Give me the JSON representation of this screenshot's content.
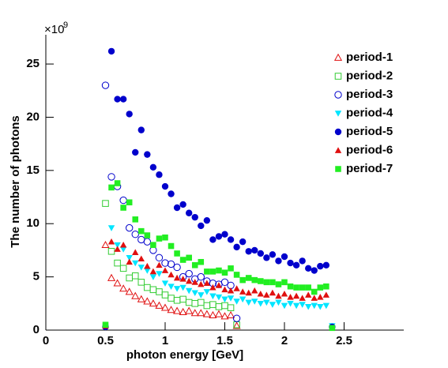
{
  "chart_data": {
    "type": "scatter",
    "x_label": "photon energy [GeV]",
    "y_label": "The number of photons",
    "multiplier": "×10",
    "multiplier_exponent": "9",
    "xlim": [
      0,
      3
    ],
    "ylim": [
      0,
      27.75
    ],
    "xticks": [
      0,
      0.5,
      1,
      1.5,
      2,
      2.5
    ],
    "yticks": [
      0,
      5,
      10,
      15,
      20,
      25
    ],
    "legend": "top-right",
    "x": [
      0.5,
      0.55,
      0.6,
      0.65,
      0.7,
      0.75,
      0.8,
      0.85,
      0.9,
      0.95,
      1.0,
      1.05,
      1.1,
      1.15,
      1.2,
      1.25,
      1.3,
      1.35,
      1.4,
      1.45,
      1.5,
      1.55,
      1.6,
      1.65,
      1.7,
      1.75,
      1.8,
      1.85,
      1.9,
      1.95,
      2.0,
      2.05,
      2.1,
      2.15,
      2.2,
      2.25,
      2.3,
      2.35,
      2.4
    ],
    "series": [
      {
        "name": "period-1",
        "color": "#e01010",
        "marker": "triangle-up-open",
        "values": [
          8.0,
          4.9,
          4.4,
          3.9,
          3.6,
          3.2,
          2.9,
          2.7,
          2.5,
          2.3,
          2.1,
          1.9,
          1.8,
          1.7,
          1.8,
          1.6,
          1.6,
          1.5,
          1.4,
          1.5,
          1.3,
          1.4,
          0.4,
          null,
          null,
          null,
          null,
          null,
          null,
          null,
          null,
          null,
          null,
          null,
          null,
          null,
          null,
          null,
          null
        ]
      },
      {
        "name": "period-2",
        "color": "#33cc33",
        "marker": "square-open",
        "values": [
          11.9,
          7.4,
          6.3,
          5.8,
          4.9,
          5.1,
          4.5,
          4.0,
          3.8,
          3.6,
          3.3,
          3.0,
          2.8,
          2.9,
          2.6,
          2.5,
          2.6,
          2.3,
          2.4,
          2.2,
          2.3,
          2.1,
          0.5,
          null,
          null,
          null,
          null,
          null,
          null,
          null,
          null,
          null,
          null,
          null,
          null,
          null,
          null,
          null,
          null
        ]
      },
      {
        "name": "period-3",
        "color": "#0000cc",
        "marker": "circle-open",
        "values": [
          23.0,
          14.4,
          13.5,
          12.2,
          9.6,
          9.0,
          8.5,
          8.3,
          7.5,
          6.8,
          6.3,
          6.2,
          5.9,
          5.0,
          5.3,
          4.8,
          5.0,
          4.6,
          4.4,
          4.3,
          4.5,
          4.2,
          1.1,
          null,
          null,
          null,
          null,
          null,
          null,
          null,
          null,
          null,
          null,
          null,
          null,
          null,
          null,
          null,
          null
        ]
      },
      {
        "name": "period-4",
        "color": "#00e5ff",
        "marker": "triangle-down",
        "values": [
          0.3,
          9.6,
          8.0,
          7.6,
          6.8,
          6.3,
          5.9,
          5.6,
          5.0,
          5.3,
          4.4,
          4.1,
          3.9,
          4.0,
          3.7,
          3.5,
          3.3,
          3.6,
          3.2,
          3.1,
          2.9,
          3.0,
          2.7,
          2.9,
          2.6,
          2.7,
          2.5,
          2.6,
          2.4,
          2.6,
          2.3,
          2.5,
          2.3,
          2.4,
          2.2,
          2.3,
          2.2,
          2.3,
          0.4
        ]
      },
      {
        "name": "period-5",
        "color": "#0000cc",
        "marker": "circle",
        "values": [
          0.3,
          26.2,
          21.7,
          21.7,
          20.3,
          16.7,
          18.8,
          16.5,
          15.3,
          14.6,
          13.5,
          12.8,
          11.5,
          11.8,
          11.0,
          10.6,
          9.8,
          10.3,
          8.5,
          8.8,
          9.0,
          8.5,
          7.8,
          8.3,
          7.4,
          7.5,
          7.2,
          6.8,
          7.1,
          6.5,
          6.9,
          6.3,
          6.1,
          6.5,
          5.8,
          5.6,
          6.0,
          6.1,
          0.3
        ]
      },
      {
        "name": "period-6",
        "color": "#e01010",
        "marker": "triangle-up",
        "values": [
          0.4,
          8.3,
          7.6,
          8.0,
          6.4,
          7.3,
          6.7,
          6.0,
          5.5,
          6.1,
          5.6,
          5.2,
          4.9,
          4.8,
          4.6,
          4.5,
          4.3,
          4.4,
          4.0,
          4.2,
          3.8,
          3.7,
          3.9,
          3.6,
          3.5,
          3.7,
          3.4,
          3.3,
          3.5,
          3.2,
          3.4,
          3.1,
          3.2,
          3.0,
          3.3,
          3.0,
          3.1,
          3.3,
          null
        ]
      },
      {
        "name": "period-7",
        "color": "#22ee22",
        "marker": "square",
        "values": [
          0.5,
          13.4,
          13.8,
          11.5,
          12.0,
          10.4,
          9.3,
          8.9,
          8.0,
          8.6,
          8.7,
          7.9,
          7.2,
          6.6,
          6.8,
          6.1,
          6.4,
          5.5,
          5.5,
          5.6,
          5.4,
          5.8,
          5.2,
          4.7,
          4.9,
          4.7,
          4.6,
          4.5,
          4.5,
          4.3,
          4.5,
          4.1,
          4.0,
          4.0,
          4.0,
          3.6,
          4.0,
          4.1,
          0.2
        ]
      }
    ]
  }
}
